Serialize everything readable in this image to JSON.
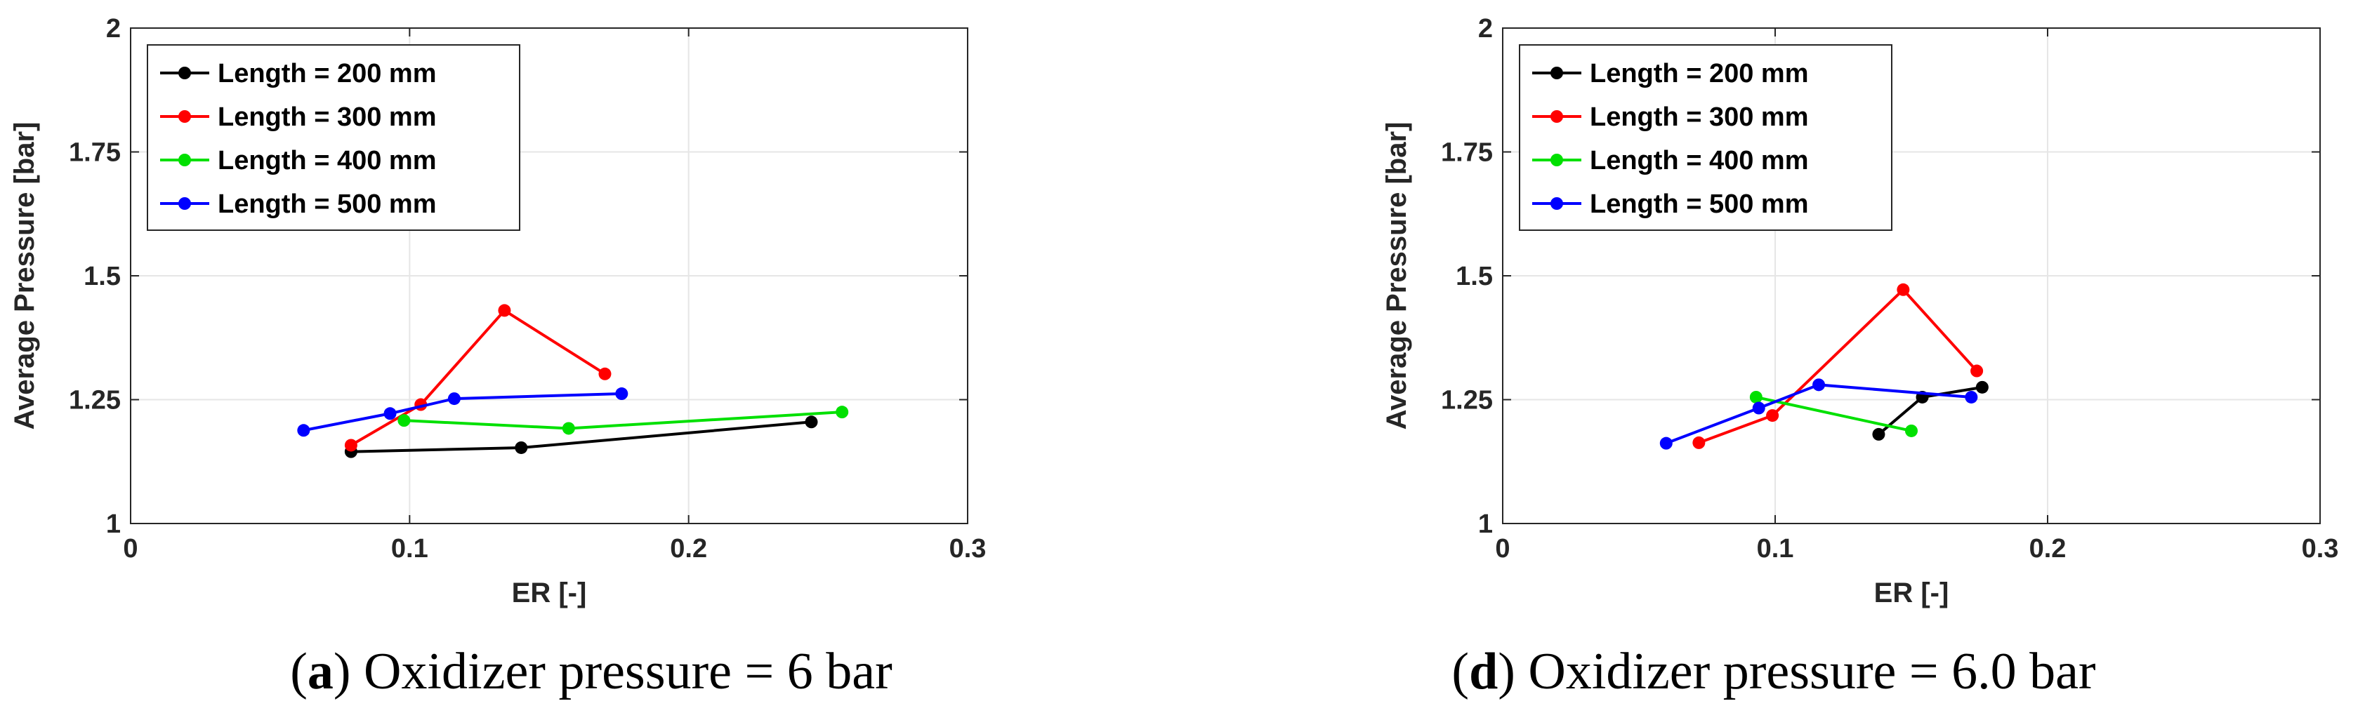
{
  "chart_data": [
    {
      "type": "line",
      "caption_letter": "a",
      "caption_text": ") Oxidizer pressure = 6 bar",
      "xlabel": "ER [-]",
      "ylabel": "Average Pressure [bar]",
      "xlim": [
        0,
        0.3
      ],
      "ylim": [
        1,
        2
      ],
      "xticks": [
        "0",
        "0.1",
        "0.2",
        "0.3"
      ],
      "yticks": [
        "1",
        "1.25",
        "1.5",
        "1.75",
        "2"
      ],
      "grid": true,
      "legend_position": "top-left",
      "series": [
        {
          "name": "Length = 200 mm",
          "color": "#000000",
          "x": [
            0.079,
            0.14,
            0.244
          ],
          "y": [
            1.145,
            1.153,
            1.205
          ]
        },
        {
          "name": "Length = 300 mm",
          "color": "#ff0000",
          "x": [
            0.079,
            0.104,
            0.134,
            0.17
          ],
          "y": [
            1.158,
            1.24,
            1.43,
            1.302
          ]
        },
        {
          "name": "Length = 400 mm",
          "color": "#00e000",
          "x": [
            0.098,
            0.157,
            0.255
          ],
          "y": [
            1.208,
            1.192,
            1.225
          ]
        },
        {
          "name": "Length = 500 mm",
          "color": "#0000ff",
          "x": [
            0.062,
            0.093,
            0.116,
            0.176
          ],
          "y": [
            1.188,
            1.222,
            1.252,
            1.262
          ]
        }
      ]
    },
    {
      "type": "line",
      "caption_letter": "d",
      "caption_text": ") Oxidizer pressure = 6.0 bar",
      "xlabel": "ER [-]",
      "ylabel": "Average Pressure [bar]",
      "xlim": [
        0,
        0.3
      ],
      "ylim": [
        1,
        2
      ],
      "xticks": [
        "0",
        "0.1",
        "0.2",
        "0.3"
      ],
      "yticks": [
        "1",
        "1.25",
        "1.5",
        "1.75",
        "2"
      ],
      "grid": true,
      "legend_position": "top-left",
      "series": [
        {
          "name": "Length = 200 mm",
          "color": "#000000",
          "x": [
            0.138,
            0.154,
            0.176
          ],
          "y": [
            1.18,
            1.255,
            1.275
          ]
        },
        {
          "name": "Length = 300 mm",
          "color": "#ff0000",
          "x": [
            0.072,
            0.099,
            0.147,
            0.174
          ],
          "y": [
            1.163,
            1.218,
            1.472,
            1.308
          ]
        },
        {
          "name": "Length = 400 mm",
          "color": "#00e000",
          "x": [
            0.093,
            0.15
          ],
          "y": [
            1.255,
            1.187
          ]
        },
        {
          "name": "Length = 500 mm",
          "color": "#0000ff",
          "x": [
            0.06,
            0.094,
            0.116,
            0.172
          ],
          "y": [
            1.162,
            1.233,
            1.28,
            1.255
          ]
        }
      ]
    }
  ]
}
